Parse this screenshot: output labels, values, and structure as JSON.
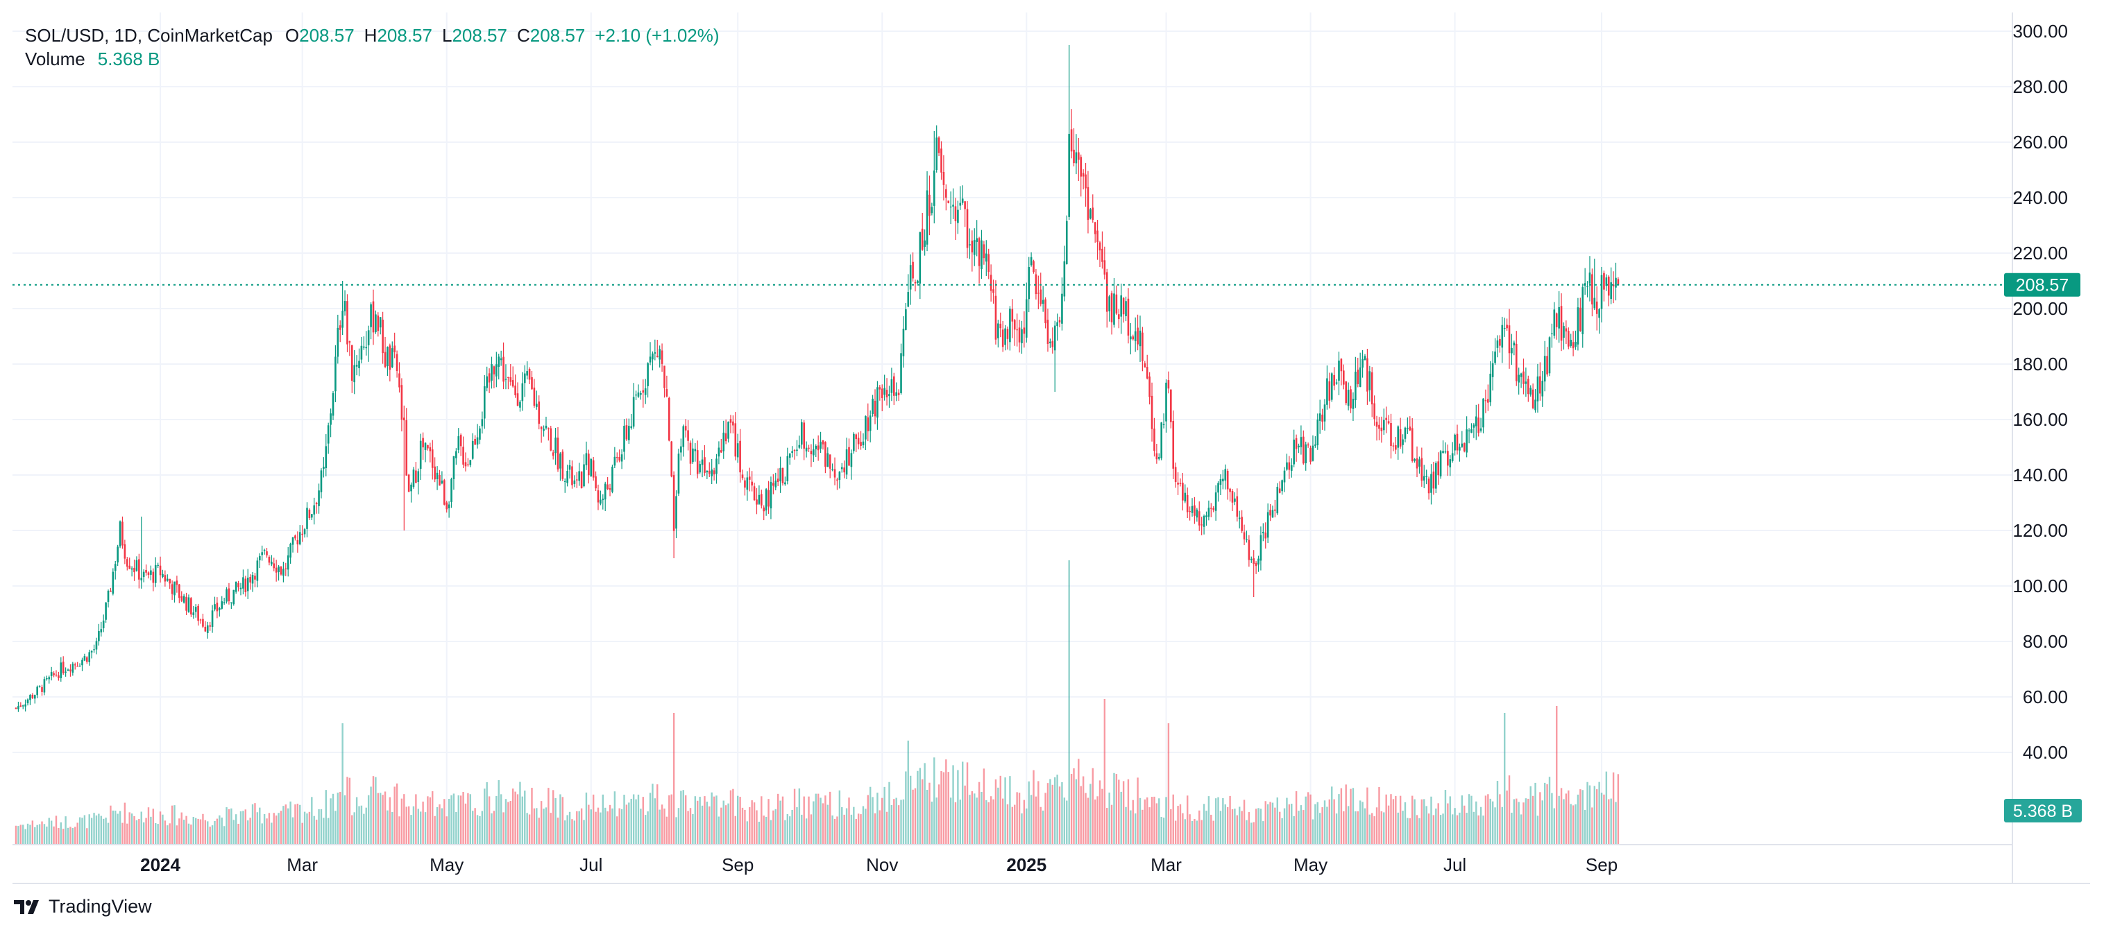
{
  "legend": {
    "symbol": "SOL/USD, 1D, CoinMarketCap",
    "o_label": "O",
    "o_value": "208.57",
    "h_label": "H",
    "h_value": "208.57",
    "l_label": "L",
    "l_value": "208.57",
    "c_label": "C",
    "c_value": "208.57",
    "change": "+2.10 (+1.02%)",
    "volume_label": "Volume",
    "volume_value": "5.368 B"
  },
  "branding": {
    "name": "TradingView"
  },
  "colors": {
    "up": "#089981",
    "down": "#F23645",
    "price_line": "#089981",
    "grid": "#F0F3FA"
  },
  "chart_data": {
    "type": "candlestick",
    "symbol": "SOL/USD",
    "interval": "1D",
    "y_axis": {
      "ticks": [
        40,
        60,
        80,
        100,
        120,
        140,
        160,
        180,
        200,
        220,
        240,
        260,
        280,
        300
      ],
      "range": [
        20,
        306
      ]
    },
    "x_axis": {
      "ticks": [
        "2024",
        "Mar",
        "May",
        "Jul",
        "Sep",
        "Nov",
        "2025",
        "Mar",
        "May",
        "Jul",
        "Sep"
      ],
      "bold_ticks": [
        "2024",
        "2025"
      ]
    },
    "last_price": 208.57,
    "last_price_label": "208.57",
    "last_volume_label": "5.368 B",
    "grid": true,
    "close_path": [
      [
        "2023-11-01",
        56
      ],
      [
        "2023-11-10",
        62
      ],
      [
        "2023-11-20",
        70
      ],
      [
        "2023-11-30",
        74
      ],
      [
        "2023-12-05",
        78
      ],
      [
        "2023-12-10",
        95
      ],
      [
        "2023-12-15",
        120
      ],
      [
        "2023-12-18",
        110
      ],
      [
        "2023-12-25",
        103
      ],
      [
        "2024-01-01",
        105
      ],
      [
        "2024-01-10",
        96
      ],
      [
        "2024-01-20",
        86
      ],
      [
        "2024-01-28",
        95
      ],
      [
        "2024-02-05",
        100
      ],
      [
        "2024-02-15",
        112
      ],
      [
        "2024-02-22",
        105
      ],
      [
        "2024-02-28",
        118
      ],
      [
        "2024-03-05",
        128
      ],
      [
        "2024-03-10",
        140
      ],
      [
        "2024-03-15",
        180
      ],
      [
        "2024-03-18",
        205
      ],
      [
        "2024-03-22",
        178
      ],
      [
        "2024-03-28",
        190
      ],
      [
        "2024-04-01",
        200
      ],
      [
        "2024-04-05",
        183
      ],
      [
        "2024-04-10",
        178
      ],
      [
        "2024-04-13",
        155
      ],
      [
        "2024-04-15",
        130
      ],
      [
        "2024-04-20",
        150
      ],
      [
        "2024-04-25",
        145
      ],
      [
        "2024-05-01",
        130
      ],
      [
        "2024-05-06",
        150
      ],
      [
        "2024-05-10",
        145
      ],
      [
        "2024-05-18",
        170
      ],
      [
        "2024-05-22",
        185
      ],
      [
        "2024-05-28",
        170
      ],
      [
        "2024-06-05",
        172
      ],
      [
        "2024-06-10",
        160
      ],
      [
        "2024-06-18",
        145
      ],
      [
        "2024-06-25",
        135
      ],
      [
        "2024-06-30",
        145
      ],
      [
        "2024-07-05",
        130
      ],
      [
        "2024-07-10",
        140
      ],
      [
        "2024-07-18",
        160
      ],
      [
        "2024-07-25",
        180
      ],
      [
        "2024-07-30",
        185
      ],
      [
        "2024-08-02",
        165
      ],
      [
        "2024-08-05",
        120
      ],
      [
        "2024-08-08",
        155
      ],
      [
        "2024-08-15",
        145
      ],
      [
        "2024-08-22",
        145
      ],
      [
        "2024-08-28",
        160
      ],
      [
        "2024-09-05",
        135
      ],
      [
        "2024-09-12",
        130
      ],
      [
        "2024-09-20",
        140
      ],
      [
        "2024-09-28",
        155
      ],
      [
        "2024-10-05",
        150
      ],
      [
        "2024-10-12",
        142
      ],
      [
        "2024-10-20",
        150
      ],
      [
        "2024-10-28",
        165
      ],
      [
        "2024-11-02",
        175
      ],
      [
        "2024-11-08",
        165
      ],
      [
        "2024-11-11",
        205
      ],
      [
        "2024-11-16",
        215
      ],
      [
        "2024-11-20",
        235
      ],
      [
        "2024-11-24",
        255
      ],
      [
        "2024-11-28",
        238
      ],
      [
        "2024-12-05",
        235
      ],
      [
        "2024-12-10",
        220
      ],
      [
        "2024-12-15",
        215
      ],
      [
        "2024-12-20",
        190
      ],
      [
        "2024-12-25",
        195
      ],
      [
        "2024-12-30",
        190
      ],
      [
        "2025-01-03",
        215
      ],
      [
        "2025-01-08",
        200
      ],
      [
        "2025-01-12",
        185
      ],
      [
        "2025-01-17",
        210
      ],
      [
        "2025-01-19",
        265
      ],
      [
        "2025-01-23",
        255
      ],
      [
        "2025-01-28",
        235
      ],
      [
        "2025-02-02",
        215
      ],
      [
        "2025-02-05",
        200
      ],
      [
        "2025-02-10",
        200
      ],
      [
        "2025-02-15",
        195
      ],
      [
        "2025-02-20",
        180
      ],
      [
        "2025-02-25",
        145
      ],
      [
        "2025-03-02",
        175
      ],
      [
        "2025-03-04",
        140
      ],
      [
        "2025-03-10",
        128
      ],
      [
        "2025-03-15",
        125
      ],
      [
        "2025-03-20",
        130
      ],
      [
        "2025-03-26",
        140
      ],
      [
        "2025-04-02",
        120
      ],
      [
        "2025-04-07",
        105
      ],
      [
        "2025-04-10",
        115
      ],
      [
        "2025-04-18",
        135
      ],
      [
        "2025-04-25",
        150
      ],
      [
        "2025-05-02",
        148
      ],
      [
        "2025-05-08",
        170
      ],
      [
        "2025-05-12",
        178
      ],
      [
        "2025-05-18",
        168
      ],
      [
        "2025-05-23",
        180
      ],
      [
        "2025-05-30",
        160
      ],
      [
        "2025-06-05",
        150
      ],
      [
        "2025-06-10",
        158
      ],
      [
        "2025-06-15",
        145
      ],
      [
        "2025-06-20",
        135
      ],
      [
        "2025-06-25",
        145
      ],
      [
        "2025-07-01",
        150
      ],
      [
        "2025-07-08",
        155
      ],
      [
        "2025-07-12",
        162
      ],
      [
        "2025-07-18",
        180
      ],
      [
        "2025-07-22",
        200
      ],
      [
        "2025-07-25",
        185
      ],
      [
        "2025-08-01",
        165
      ],
      [
        "2025-08-05",
        170
      ],
      [
        "2025-08-10",
        185
      ],
      [
        "2025-08-13",
        200
      ],
      [
        "2025-08-18",
        185
      ],
      [
        "2025-08-22",
        195
      ],
      [
        "2025-08-26",
        210
      ],
      [
        "2025-08-30",
        205
      ],
      [
        "2025-09-03",
        205
      ],
      [
        "2025-09-08",
        208.57
      ]
    ],
    "notable_wicks": [
      {
        "date": "2023-12-24",
        "high": 125
      },
      {
        "date": "2024-03-18",
        "high": 210
      },
      {
        "date": "2024-04-13",
        "low": 120
      },
      {
        "date": "2024-08-05",
        "low": 110
      },
      {
        "date": "2024-11-23",
        "high": 264
      },
      {
        "date": "2025-01-19",
        "high": 295
      },
      {
        "date": "2025-01-13",
        "low": 170
      },
      {
        "date": "2025-04-07",
        "low": 96
      },
      {
        "date": "2025-08-29",
        "high": 218
      }
    ],
    "volume_spikes": [
      {
        "date": "2024-03-18",
        "value": 35
      },
      {
        "date": "2024-08-05",
        "value": 38
      },
      {
        "date": "2024-11-12",
        "value": 30
      },
      {
        "date": "2025-01-19",
        "value": 82
      },
      {
        "date": "2025-02-03",
        "value": 42
      },
      {
        "date": "2025-03-02",
        "value": 35
      },
      {
        "date": "2025-07-22",
        "value": 38
      },
      {
        "date": "2025-08-13",
        "value": 40
      }
    ]
  }
}
